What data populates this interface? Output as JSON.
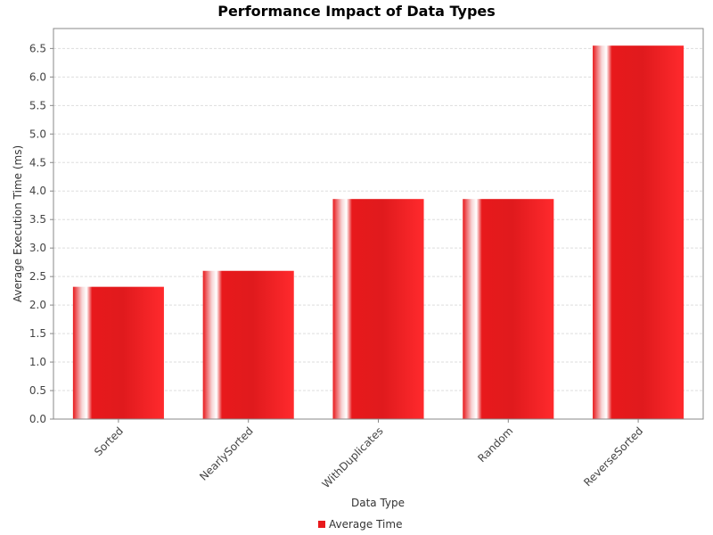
{
  "chart_data": {
    "type": "bar",
    "title": "Performance Impact of Data Types",
    "xlabel": "Data Type",
    "ylabel": "Average Execution Time (ms)",
    "categories": [
      "Sorted",
      "NearlySorted",
      "WithDuplicates",
      "Random",
      "ReverseSorted"
    ],
    "series": [
      {
        "name": "Average Time",
        "values": [
          2.32,
          2.6,
          3.86,
          3.86,
          6.55
        ]
      }
    ],
    "ylim": [
      0,
      6.85
    ],
    "yticks": [
      "0.0",
      "0.5",
      "1.0",
      "1.5",
      "2.0",
      "2.5",
      "3.0",
      "3.5",
      "4.0",
      "4.5",
      "5.0",
      "5.5",
      "6.0",
      "6.5"
    ],
    "grid": true,
    "legend": "bottom",
    "colors": {
      "bar": "#e8191c",
      "highlight": "#ffffff",
      "grid": "#dddddd",
      "axis": "#888888"
    }
  }
}
